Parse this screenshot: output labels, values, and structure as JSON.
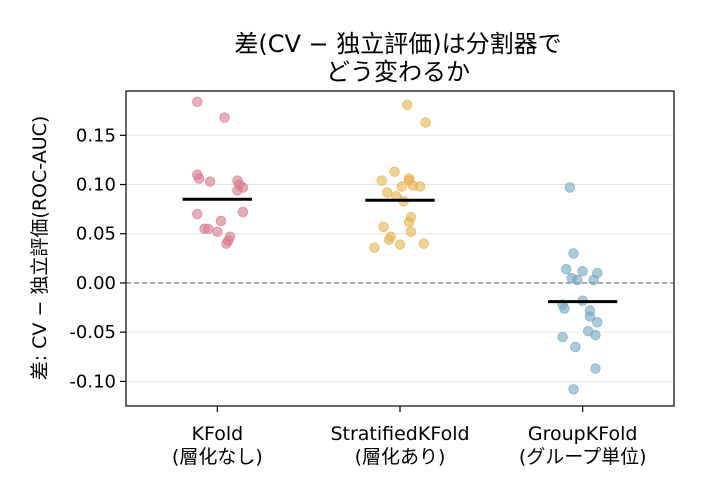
{
  "chart_data": {
    "type": "scatter",
    "title_lines": [
      "差(CV − 独立評価)は分割器で",
      "どう変わるか"
    ],
    "xlabel": "",
    "ylabel": "差: CV − 独立評価(ROC-AUC)",
    "ylim": [
      -0.125,
      0.195
    ],
    "yticks": [
      -0.1,
      -0.05,
      0.0,
      0.05,
      0.1,
      0.15
    ],
    "ytick_labels": [
      "-0.10",
      "-0.05",
      "0.00",
      "0.05",
      "0.10",
      "0.15"
    ],
    "grid": "horizontal",
    "reference_line": 0,
    "categories": [
      {
        "lines": [
          "KFold",
          "(層化なし)"
        ]
      },
      {
        "lines": [
          "StratifiedKFold",
          "(層化あり)"
        ]
      },
      {
        "lines": [
          "GroupKFold",
          "(グループ単位)"
        ]
      }
    ],
    "series": [
      {
        "color": "#d9778b",
        "mean": 0.085,
        "points": [
          {
            "jitter": -0.11,
            "y": 0.184
          },
          {
            "jitter": 0.04,
            "y": 0.168
          },
          {
            "jitter": -0.11,
            "y": 0.11
          },
          {
            "jitter": -0.1,
            "y": 0.106
          },
          {
            "jitter": -0.04,
            "y": 0.103
          },
          {
            "jitter": 0.11,
            "y": 0.104
          },
          {
            "jitter": 0.12,
            "y": 0.1
          },
          {
            "jitter": 0.14,
            "y": 0.097
          },
          {
            "jitter": 0.11,
            "y": 0.094
          },
          {
            "jitter": -0.11,
            "y": 0.07
          },
          {
            "jitter": 0.14,
            "y": 0.072
          },
          {
            "jitter": 0.02,
            "y": 0.063
          },
          {
            "jitter": -0.07,
            "y": 0.055
          },
          {
            "jitter": -0.05,
            "y": 0.055
          },
          {
            "jitter": 0.0,
            "y": 0.052
          },
          {
            "jitter": 0.07,
            "y": 0.047
          },
          {
            "jitter": 0.06,
            "y": 0.043
          },
          {
            "jitter": 0.05,
            "y": 0.04
          }
        ]
      },
      {
        "color": "#e7b04b",
        "mean": 0.084,
        "points": [
          {
            "jitter": 0.04,
            "y": 0.181
          },
          {
            "jitter": 0.14,
            "y": 0.163
          },
          {
            "jitter": -0.03,
            "y": 0.113
          },
          {
            "jitter": 0.05,
            "y": 0.106
          },
          {
            "jitter": 0.05,
            "y": 0.104
          },
          {
            "jitter": -0.1,
            "y": 0.104
          },
          {
            "jitter": 0.07,
            "y": 0.099
          },
          {
            "jitter": 0.01,
            "y": 0.098
          },
          {
            "jitter": 0.11,
            "y": 0.098
          },
          {
            "jitter": -0.07,
            "y": 0.092
          },
          {
            "jitter": -0.02,
            "y": 0.088
          },
          {
            "jitter": 0.02,
            "y": 0.083
          },
          {
            "jitter": 0.06,
            "y": 0.067
          },
          {
            "jitter": 0.05,
            "y": 0.062
          },
          {
            "jitter": -0.09,
            "y": 0.057
          },
          {
            "jitter": 0.06,
            "y": 0.052
          },
          {
            "jitter": -0.05,
            "y": 0.047
          },
          {
            "jitter": -0.06,
            "y": 0.044
          },
          {
            "jitter": 0.13,
            "y": 0.04
          },
          {
            "jitter": 0.0,
            "y": 0.039
          },
          {
            "jitter": -0.14,
            "y": 0.036
          }
        ]
      },
      {
        "color": "#6fa6c3",
        "mean": -0.019,
        "points": [
          {
            "jitter": -0.07,
            "y": 0.097
          },
          {
            "jitter": -0.05,
            "y": 0.03
          },
          {
            "jitter": -0.09,
            "y": 0.014
          },
          {
            "jitter": 0.0,
            "y": 0.012
          },
          {
            "jitter": 0.08,
            "y": 0.01
          },
          {
            "jitter": -0.06,
            "y": 0.005
          },
          {
            "jitter": -0.03,
            "y": 0.003
          },
          {
            "jitter": 0.06,
            "y": 0.003
          },
          {
            "jitter": 0.0,
            "y": -0.018
          },
          {
            "jitter": -0.11,
            "y": -0.022
          },
          {
            "jitter": -0.1,
            "y": -0.026
          },
          {
            "jitter": 0.04,
            "y": -0.028
          },
          {
            "jitter": 0.04,
            "y": -0.034
          },
          {
            "jitter": 0.08,
            "y": -0.04
          },
          {
            "jitter": 0.03,
            "y": -0.049
          },
          {
            "jitter": -0.11,
            "y": -0.055
          },
          {
            "jitter": 0.07,
            "y": -0.053
          },
          {
            "jitter": -0.04,
            "y": -0.065
          },
          {
            "jitter": 0.07,
            "y": -0.087
          },
          {
            "jitter": -0.05,
            "y": -0.108
          }
        ]
      }
    ]
  }
}
